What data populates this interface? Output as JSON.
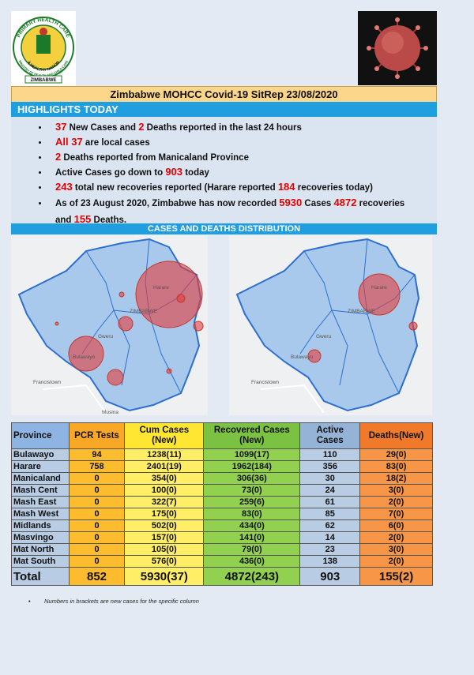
{
  "logo": {
    "ring_top": "PRIMARY HEALTH CARE",
    "ring_middle": "A HEALTHY NATION",
    "ring_bottom": "MINISTRY OF HEALTH AND CHILD CARE",
    "banner": "ZIMBABWE"
  },
  "title": "Zimbabwe MOHCC Covid-19 SitRep 23/08/2020",
  "highlights": {
    "heading": "HIGHLIGHTS TODAY",
    "bullets": [
      [
        {
          "text": "37",
          "highlight": true
        },
        {
          "text": " New Cases and "
        },
        {
          "text": "2",
          "highlight": true
        },
        {
          "text": " Deaths reported in the last 24 hours"
        }
      ],
      [
        {
          "text": "All 37",
          "highlight": true
        },
        {
          "text": " are local cases"
        }
      ],
      [
        {
          "text": "2",
          "highlight": true
        },
        {
          "text": " Deaths reported from Manicaland Province"
        }
      ],
      [
        {
          "text": "Active Cases go down to "
        },
        {
          "text": "903",
          "highlight": true
        },
        {
          "text": " today"
        }
      ],
      [
        {
          "text": "243",
          "highlight": true
        },
        {
          "text": " total new recoveries reported (Harare reported "
        },
        {
          "text": "184",
          "highlight": true
        },
        {
          "text": " recoveries today)"
        }
      ],
      [
        {
          "text": "As of 23 August 2020, Zimbabwe has now recorded "
        },
        {
          "text": "5930",
          "highlight": true
        },
        {
          "text": " Cases "
        },
        {
          "text": "4872",
          "highlight": true
        },
        {
          "text": " recoveries and "
        },
        {
          "text": "155",
          "highlight": true
        },
        {
          "text": " Deaths."
        }
      ]
    ]
  },
  "distribution": {
    "heading": "CASES AND DEATHS DISTRIBUTION",
    "maps": [
      {
        "labels": [
          "Harare",
          "ZIMBABWE",
          "Gweru",
          "Bulawayo",
          "Francistown",
          "Musina"
        ]
      },
      {
        "labels": [
          "Harare",
          "ZIMBABWE",
          "Gweru",
          "Bulawayo",
          "Francistown"
        ]
      }
    ]
  },
  "table": {
    "columns": [
      "Province",
      "PCR Tests",
      "Cum Cases (New)",
      "Recovered Cases (New)",
      "Active Cases",
      "Deaths(New)"
    ],
    "rows": [
      [
        "Bulawayo",
        "94",
        "1238(11)",
        "1099(17)",
        "110",
        "29(0)"
      ],
      [
        "Harare",
        "758",
        "2401(19)",
        "1962(184)",
        "356",
        "83(0)"
      ],
      [
        "Manicaland",
        "0",
        "354(0)",
        "306(36)",
        "30",
        "18(2)"
      ],
      [
        "Mash Cent",
        "0",
        "100(0)",
        "73(0)",
        "24",
        "3(0)"
      ],
      [
        "Mash East",
        "0",
        "322(7)",
        "259(6)",
        "61",
        "2(0)"
      ],
      [
        "Mash West",
        "0",
        "175(0)",
        "83(0)",
        "85",
        "7(0)"
      ],
      [
        "Midlands",
        "0",
        "502(0)",
        "434(0)",
        "62",
        "6(0)"
      ],
      [
        "Masvingo",
        "0",
        "157(0)",
        "141(0)",
        "14",
        "2(0)"
      ],
      [
        "Mat North",
        "0",
        "105(0)",
        "79(0)",
        "23",
        "3(0)"
      ],
      [
        "Mat South",
        "0",
        "576(0)",
        "436(0)",
        "138",
        "2(0)"
      ]
    ],
    "total": [
      "Total",
      "852",
      "5930(37)",
      "4872(243)",
      "903",
      "155(2)"
    ]
  },
  "footnote": "Numbers in brackets are new cases for the specific column"
}
